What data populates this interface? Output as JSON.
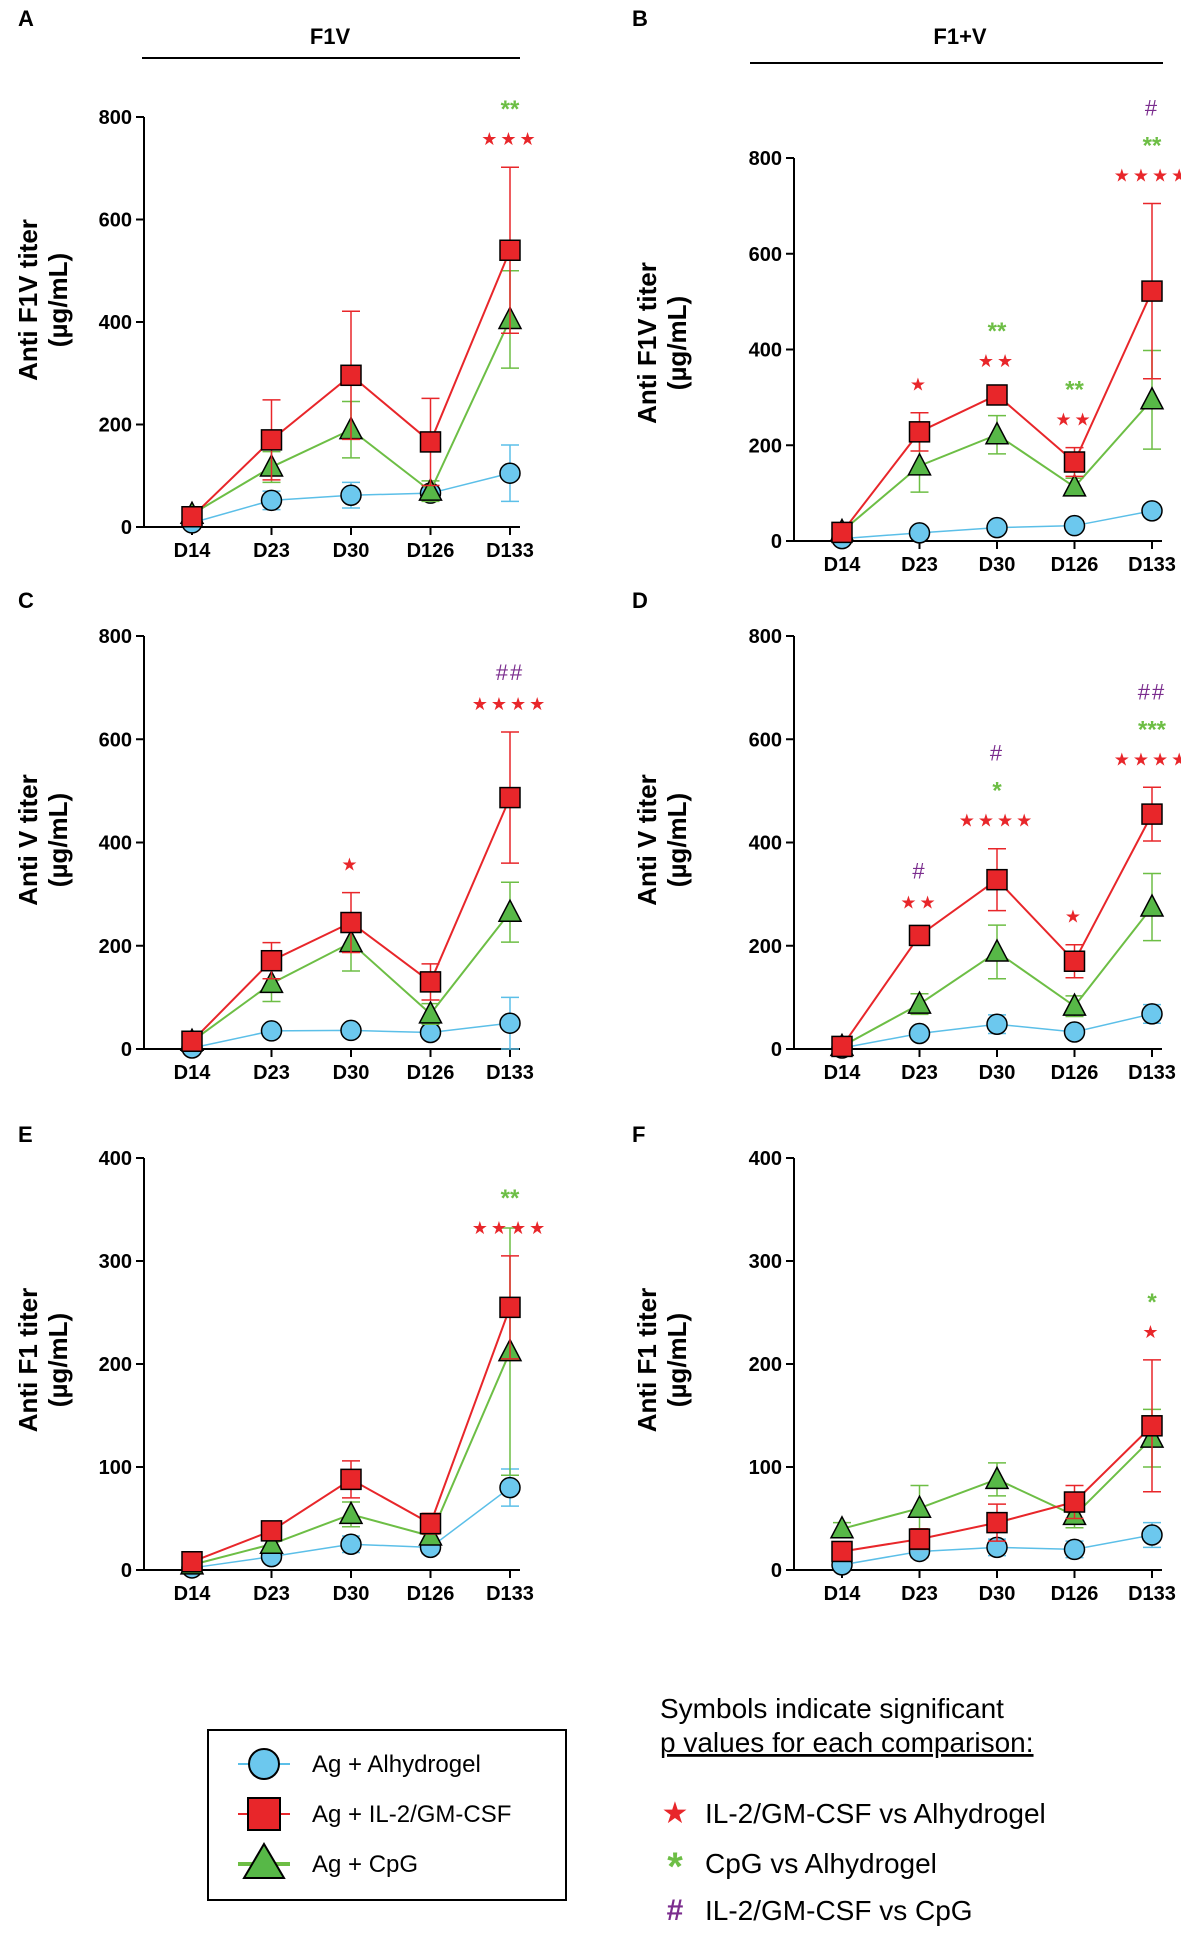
{
  "colors": {
    "alhydrogel_fill": "#6cc8ee",
    "alhydrogel_line": "#5bbfe8",
    "il2_fill": "#e8262a",
    "il2_line": "#e8262a",
    "cpg_fill": "#57b847",
    "cpg_line": "#6dbe45",
    "purple": "#7b2d8e",
    "axis": "#000000"
  },
  "group_titles": [
    "F1V",
    "F1+V"
  ],
  "chart_data": [
    {
      "panel": "A",
      "type": "line",
      "ylabel_line1": "Anti F1V titer",
      "ylabel_line2": "(µg/mL)",
      "ylim": [
        0,
        800
      ],
      "yticks": [
        "0",
        "200",
        "400",
        "600",
        "800"
      ],
      "categories": [
        "D14",
        "D23",
        "D30",
        "D126",
        "D133"
      ],
      "series": [
        {
          "name": "Ag + Alhydrogel",
          "values": [
            8,
            52,
            62,
            66,
            105
          ],
          "errors": [
            3,
            18,
            25,
            15,
            55
          ]
        },
        {
          "name": "Ag + CpG",
          "values": [
            25,
            117,
            190,
            70,
            405
          ],
          "errors": [
            5,
            30,
            55,
            20,
            95
          ]
        },
        {
          "name": "Ag + IL-2/GM-CSF",
          "values": [
            20,
            170,
            296,
            166,
            540
          ],
          "errors": [
            8,
            78,
            125,
            85,
            162
          ]
        }
      ],
      "annotations": [
        {
          "x": "D133",
          "green": "**",
          "red": "***"
        }
      ]
    },
    {
      "panel": "B",
      "type": "line",
      "ylabel_line1": "Anti F1V titer",
      "ylabel_line2": "(µg/mL)",
      "ylim": [
        0,
        800
      ],
      "yticks": [
        "0",
        "200",
        "400",
        "600",
        "800"
      ],
      "categories": [
        "D14",
        "D23",
        "D30",
        "D126",
        "D133"
      ],
      "series": [
        {
          "name": "Ag + Alhydrogel",
          "values": [
            5,
            17,
            28,
            32,
            63
          ],
          "errors": [
            2,
            6,
            8,
            8,
            12
          ]
        },
        {
          "name": "Ag + CpG",
          "values": [
            20,
            157,
            222,
            113,
            295
          ],
          "errors": [
            5,
            55,
            40,
            18,
            103
          ]
        },
        {
          "name": "Ag + IL-2/GM-CSF",
          "values": [
            18,
            228,
            305,
            165,
            522
          ],
          "errors": [
            5,
            40,
            12,
            30,
            183
          ]
        }
      ],
      "annotations": [
        {
          "x": "D23",
          "red": "*"
        },
        {
          "x": "D30",
          "green": "**",
          "red": "**"
        },
        {
          "x": "D126",
          "green": "**",
          "red": "**"
        },
        {
          "x": "D133",
          "purple": "#",
          "green": "**",
          "red": "****"
        }
      ]
    },
    {
      "panel": "C",
      "type": "line",
      "ylabel_line1": "Anti V titer",
      "ylabel_line2": "(µg/mL)",
      "ylim": [
        0,
        800
      ],
      "yticks": [
        "0",
        "200",
        "400",
        "600",
        "800"
      ],
      "categories": [
        "D14",
        "D23",
        "D30",
        "D126",
        "D133"
      ],
      "series": [
        {
          "name": "Ag + Alhydrogel",
          "values": [
            2,
            35,
            36,
            32,
            50
          ],
          "errors": [
            2,
            8,
            10,
            10,
            50
          ]
        },
        {
          "name": "Ag + CpG",
          "values": [
            15,
            127,
            206,
            68,
            265
          ],
          "errors": [
            5,
            35,
            55,
            20,
            58
          ]
        },
        {
          "name": "Ag + IL-2/GM-CSF",
          "values": [
            15,
            171,
            245,
            130,
            487
          ],
          "errors": [
            5,
            35,
            58,
            35,
            127
          ]
        }
      ],
      "annotations": [
        {
          "x": "D30",
          "red": "*"
        },
        {
          "x": "D133",
          "purple": "##",
          "red": "****"
        }
      ]
    },
    {
      "panel": "D",
      "type": "line",
      "ylabel_line1": "Anti V titer",
      "ylabel_line2": "(µg/mL)",
      "ylim": [
        0,
        800
      ],
      "yticks": [
        "0",
        "200",
        "400",
        "600",
        "800"
      ],
      "categories": [
        "D14",
        "D23",
        "D30",
        "D126",
        "D133"
      ],
      "series": [
        {
          "name": "Ag + Alhydrogel",
          "values": [
            2,
            30,
            48,
            33,
            68
          ],
          "errors": [
            2,
            10,
            18,
            10,
            18
          ]
        },
        {
          "name": "Ag + CpG",
          "values": [
            5,
            87,
            188,
            83,
            275
          ],
          "errors": [
            3,
            20,
            52,
            20,
            65
          ]
        },
        {
          "name": "Ag + IL-2/GM-CSF",
          "values": [
            5,
            220,
            328,
            170,
            455
          ],
          "errors": [
            3,
            10,
            60,
            32,
            52
          ]
        }
      ],
      "annotations": [
        {
          "x": "D23",
          "purple": "#",
          "red": "**"
        },
        {
          "x": "D30",
          "purple": "#",
          "green": "*",
          "red": "****"
        },
        {
          "x": "D126",
          "red": "*"
        },
        {
          "x": "D133",
          "purple": "##",
          "green": "***",
          "red": "****"
        }
      ]
    },
    {
      "panel": "E",
      "type": "line",
      "ylabel_line1": "Anti F1 titer",
      "ylabel_line2": "(µg/mL)",
      "ylim": [
        0,
        400
      ],
      "yticks": [
        "0",
        "100",
        "200",
        "300",
        "400"
      ],
      "categories": [
        "D14",
        "D23",
        "D30",
        "D126",
        "D133"
      ],
      "series": [
        {
          "name": "Ag + Alhydrogel",
          "values": [
            2,
            13,
            25,
            22,
            80
          ],
          "errors": [
            1,
            5,
            8,
            6,
            18
          ]
        },
        {
          "name": "Ag + CpG",
          "values": [
            5,
            25,
            54,
            33,
            212
          ],
          "errors": [
            2,
            8,
            12,
            8,
            120
          ]
        },
        {
          "name": "Ag + IL-2/GM-CSF",
          "values": [
            8,
            38,
            88,
            45,
            255
          ],
          "errors": [
            3,
            8,
            18,
            10,
            50
          ]
        }
      ],
      "annotations": [
        {
          "x": "D133",
          "green": "**",
          "red": "****"
        }
      ]
    },
    {
      "panel": "F",
      "type": "line",
      "ylabel_line1": "Anti F1 titer",
      "ylabel_line2": "(µg/mL)",
      "ylim": [
        0,
        400
      ],
      "yticks": [
        "0",
        "100",
        "200",
        "300",
        "400"
      ],
      "categories": [
        "D14",
        "D23",
        "D30",
        "D126",
        "D133"
      ],
      "series": [
        {
          "name": "Ag + Alhydrogel",
          "values": [
            5,
            18,
            22,
            20,
            34
          ],
          "errors": [
            3,
            6,
            8,
            8,
            12
          ]
        },
        {
          "name": "Ag + CpG",
          "values": [
            40,
            60,
            88,
            53,
            128
          ],
          "errors": [
            6,
            22,
            16,
            12,
            28
          ]
        },
        {
          "name": "Ag + IL-2/GM-CSF",
          "values": [
            18,
            30,
            46,
            66,
            140
          ],
          "errors": [
            5,
            10,
            18,
            16,
            64
          ]
        }
      ],
      "annotations": [
        {
          "x": "D133",
          "green": "*",
          "red": "*"
        }
      ]
    }
  ],
  "legend": {
    "items": [
      "Ag + Alhydrogel",
      "Ag + IL-2/GM-CSF",
      "Ag + CpG"
    ]
  },
  "symbols_key": {
    "title_line1": "Symbols indicate significant",
    "title_line2": "p values for each comparison:",
    "items": [
      {
        "symbol": "★",
        "text": "IL-2/GM-CSF vs Alhydrogel"
      },
      {
        "symbol": "*",
        "text": "CpG vs Alhydrogel"
      },
      {
        "symbol": "#",
        "text": "IL-2/GM-CSF vs CpG"
      }
    ]
  }
}
